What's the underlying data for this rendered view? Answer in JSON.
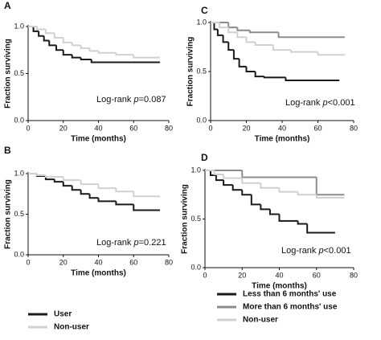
{
  "chart_data": [
    {
      "type": "step",
      "label": "A",
      "ylabel": "Fraction surviving",
      "xlabel": "Time (months)",
      "annotation": {
        "prefix": "Log-rank ",
        "italic": "p",
        "suffix": "=0.087"
      },
      "xlim": [
        0,
        80
      ],
      "ylim": [
        0,
        1
      ],
      "xticks": [
        0,
        20,
        40,
        60,
        80
      ],
      "yticks": [
        {
          "value": 0,
          "label": "0.0"
        },
        {
          "value": 0.5,
          "label": "0.5"
        },
        {
          "value": 1,
          "label": "1.0"
        }
      ],
      "series": [
        {
          "color": "#1a1a1a",
          "x": [
            0,
            3,
            6,
            9,
            12,
            16,
            20,
            25,
            30,
            36,
            75
          ],
          "values": [
            1,
            0.95,
            0.9,
            0.85,
            0.8,
            0.75,
            0.7,
            0.67,
            0.65,
            0.62,
            0.62
          ]
        },
        {
          "color": "#d0d0d0",
          "x": [
            0,
            5,
            10,
            15,
            20,
            25,
            30,
            35,
            40,
            50,
            60,
            75
          ],
          "values": [
            1,
            0.97,
            0.93,
            0.88,
            0.83,
            0.8,
            0.77,
            0.74,
            0.72,
            0.7,
            0.67,
            0.67
          ]
        }
      ]
    },
    {
      "type": "step",
      "label": "B",
      "ylabel": "Fraction surviving",
      "xlabel": "Time (months)",
      "annotation": {
        "prefix": "Log-rank ",
        "italic": "p",
        "suffix": "=0.221"
      },
      "xlim": [
        0,
        80
      ],
      "ylim": [
        0,
        1
      ],
      "xticks": [
        0,
        20,
        40,
        60,
        80
      ],
      "yticks": [
        {
          "value": 0,
          "label": "0.0"
        },
        {
          "value": 0.5,
          "label": "0.5"
        },
        {
          "value": 1,
          "label": "1.0"
        }
      ],
      "series": [
        {
          "name": "User",
          "color": "#1a1a1a",
          "x": [
            0,
            5,
            10,
            15,
            20,
            25,
            30,
            35,
            40,
            50,
            60,
            75
          ],
          "values": [
            1,
            0.97,
            0.93,
            0.9,
            0.85,
            0.8,
            0.75,
            0.7,
            0.66,
            0.62,
            0.55,
            0.55
          ]
        },
        {
          "name": "Non-user",
          "color": "#d0d0d0",
          "x": [
            0,
            5,
            10,
            20,
            30,
            40,
            50,
            60,
            75
          ],
          "values": [
            1,
            0.98,
            0.96,
            0.92,
            0.87,
            0.82,
            0.78,
            0.72,
            0.72
          ]
        }
      ]
    },
    {
      "type": "step",
      "label": "C",
      "ylabel": "Fraction surviving",
      "xlabel": "Time (months)",
      "annotation": {
        "prefix": "Log-rank ",
        "italic": "p",
        "suffix": "<0.001"
      },
      "xlim": [
        0,
        80
      ],
      "ylim": [
        0,
        1
      ],
      "xticks": [
        0,
        20,
        40,
        60,
        80
      ],
      "yticks": [
        {
          "value": 0,
          "label": "0.0"
        },
        {
          "value": 0.5,
          "label": "0.5"
        },
        {
          "value": 1,
          "label": "1.0"
        }
      ],
      "series": [
        {
          "color": "#1a1a1a",
          "x": [
            0,
            2,
            4,
            7,
            10,
            13,
            16,
            20,
            25,
            30,
            42,
            72
          ],
          "values": [
            1,
            0.93,
            0.87,
            0.8,
            0.72,
            0.63,
            0.55,
            0.5,
            0.45,
            0.44,
            0.41,
            0.41
          ]
        },
        {
          "color": "#8c8c8c",
          "x": [
            0,
            10,
            15,
            22,
            38,
            75
          ],
          "values": [
            1,
            0.95,
            0.92,
            0.9,
            0.85,
            0.85
          ]
        },
        {
          "color": "#d0d0d0",
          "x": [
            0,
            5,
            10,
            15,
            20,
            25,
            35,
            45,
            60,
            75
          ],
          "values": [
            1,
            0.95,
            0.9,
            0.85,
            0.8,
            0.77,
            0.72,
            0.7,
            0.67,
            0.67
          ]
        }
      ]
    },
    {
      "type": "step",
      "label": "D",
      "ylabel": "Fraction surviving",
      "xlabel": "Time (months)",
      "annotation": {
        "prefix": "Log-rank ",
        "italic": "p",
        "suffix": "<0.001"
      },
      "xlim": [
        0,
        80
      ],
      "ylim": [
        0,
        1
      ],
      "xticks": [
        0,
        20,
        40,
        60,
        80
      ],
      "yticks": [
        {
          "value": 0,
          "label": "0.0"
        },
        {
          "value": 0.5,
          "label": "0.5"
        },
        {
          "value": 1,
          "label": "1.0"
        }
      ],
      "series": [
        {
          "name": "Less than 6 months' use",
          "color": "#1a1a1a",
          "x": [
            0,
            3,
            6,
            10,
            15,
            20,
            25,
            30,
            35,
            40,
            50,
            55,
            70
          ],
          "values": [
            1,
            0.95,
            0.9,
            0.85,
            0.8,
            0.75,
            0.65,
            0.6,
            0.55,
            0.48,
            0.45,
            0.36,
            0.36
          ]
        },
        {
          "name": "More than 6 months' use",
          "color": "#8c8c8c",
          "x": [
            0,
            20,
            60,
            75
          ],
          "values": [
            1,
            0.93,
            0.75,
            0.75
          ]
        },
        {
          "name": "Non-user",
          "color": "#d0d0d0",
          "x": [
            0,
            5,
            10,
            20,
            30,
            40,
            50,
            60,
            75
          ],
          "values": [
            1,
            0.96,
            0.92,
            0.87,
            0.82,
            0.78,
            0.75,
            0.72,
            0.72
          ]
        }
      ]
    }
  ]
}
